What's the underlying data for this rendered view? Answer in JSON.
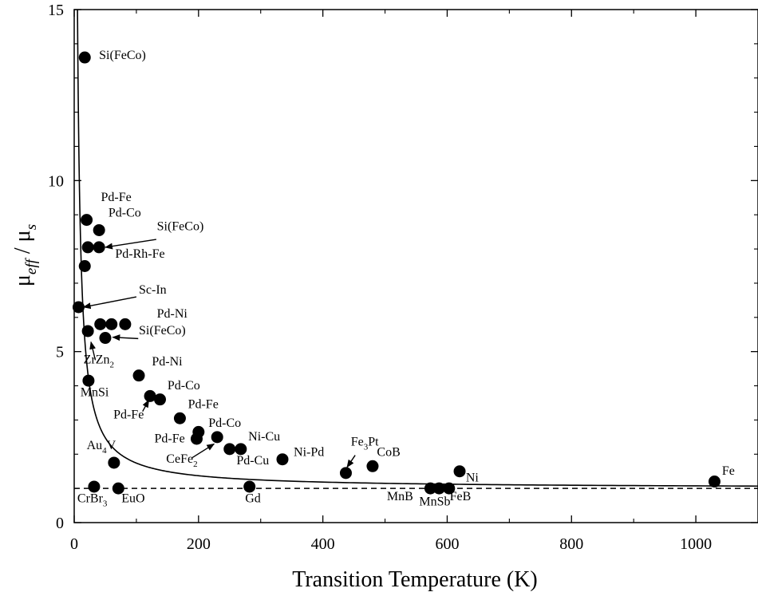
{
  "chart_data": {
    "type": "scatter",
    "xlabel": "Transition Temperature (K)",
    "ylabel": "μeff / μs",
    "ylabel_parts": {
      "mu1": "μ",
      "sub1": "eff",
      "slash": " / ",
      "mu2": "μ",
      "sub2": "s"
    },
    "xlim": [
      0,
      1100
    ],
    "ylim": [
      0,
      15
    ],
    "xticks": [
      0,
      200,
      400,
      600,
      800,
      1000
    ],
    "xtick_labels": [
      "0",
      "200",
      "400",
      "600",
      "800",
      "1000"
    ],
    "yticks": [
      0,
      5,
      10,
      15
    ],
    "ytick_labels": [
      "0",
      "5",
      "10",
      "15"
    ],
    "grid": false,
    "reference_line": {
      "y": 1,
      "style": "dashed"
    },
    "fit_curve": {
      "form": "y = 1 + a / x",
      "a": 74,
      "color": "#000000"
    },
    "points": [
      {
        "x": 17,
        "y": 13.6
      },
      {
        "x": 20,
        "y": 8.85
      },
      {
        "x": 40,
        "y": 8.55
      },
      {
        "x": 22,
        "y": 8.05
      },
      {
        "x": 40,
        "y": 8.05
      },
      {
        "x": 17,
        "y": 7.5
      },
      {
        "x": 7,
        "y": 6.3
      },
      {
        "x": 22,
        "y": 5.6
      },
      {
        "x": 42,
        "y": 5.8
      },
      {
        "x": 60,
        "y": 5.8
      },
      {
        "x": 82,
        "y": 5.8
      },
      {
        "x": 50,
        "y": 5.4
      },
      {
        "x": 104,
        "y": 4.3
      },
      {
        "x": 23,
        "y": 4.15
      },
      {
        "x": 122,
        "y": 3.7
      },
      {
        "x": 138,
        "y": 3.6
      },
      {
        "x": 170,
        "y": 3.05
      },
      {
        "x": 200,
        "y": 2.65
      },
      {
        "x": 197,
        "y": 2.45
      },
      {
        "x": 230,
        "y": 2.5
      },
      {
        "x": 250,
        "y": 2.15
      },
      {
        "x": 268,
        "y": 2.15
      },
      {
        "x": 335,
        "y": 1.85
      },
      {
        "x": 437,
        "y": 1.45
      },
      {
        "x": 480,
        "y": 1.65
      },
      {
        "x": 620,
        "y": 1.5
      },
      {
        "x": 1030,
        "y": 1.2
      },
      {
        "x": 64,
        "y": 1.75
      },
      {
        "x": 32,
        "y": 1.05
      },
      {
        "x": 71,
        "y": 1.0
      },
      {
        "x": 282,
        "y": 1.05
      },
      {
        "x": 573,
        "y": 1.0
      },
      {
        "x": 587,
        "y": 1.0
      },
      {
        "x": 603,
        "y": 1.0
      }
    ],
    "annotations": [
      {
        "text": "Si(FeCo)",
        "x": 40,
        "y": 13.55
      },
      {
        "text": "Pd-Fe",
        "x": 43,
        "y": 9.4
      },
      {
        "text": "Pd-Co",
        "x": 55,
        "y": 8.95
      },
      {
        "text": "Si(FeCo)",
        "x": 133,
        "y": 8.55
      },
      {
        "text": "Pd-Rh-Fe",
        "x": 66,
        "y": 7.75
      },
      {
        "text": "Sc-In",
        "x": 104,
        "y": 6.7
      },
      {
        "text": "Pd-Ni",
        "x": 133,
        "y": 6.0
      },
      {
        "text": "Si(FeCo)",
        "x": 104,
        "y": 5.5
      },
      {
        "text": "ZrZn",
        "sub": "2",
        "x": 15,
        "y": 4.65
      },
      {
        "text": "Pd-Ni",
        "x": 125,
        "y": 4.6
      },
      {
        "text": "MnSi",
        "x": 10,
        "y": 3.7
      },
      {
        "text": "Pd-Co",
        "x": 150,
        "y": 3.9
      },
      {
        "text": "Pd-Fe",
        "x": 183,
        "y": 3.35
      },
      {
        "text": "Pd-Fe",
        "x": 63,
        "y": 3.05
      },
      {
        "text": "Pd-Co",
        "x": 216,
        "y": 2.8
      },
      {
        "text": "Pd-Fe",
        "x": 129,
        "y": 2.35
      },
      {
        "text": "Ni-Cu",
        "x": 280,
        "y": 2.4
      },
      {
        "text": "Au",
        "sub": "4",
        "tail": "V",
        "x": 20,
        "y": 2.15
      },
      {
        "text": "Ni-Pd",
        "x": 353,
        "y": 1.95
      },
      {
        "text": "Fe",
        "sub": "3",
        "tail": "Pt",
        "x": 445,
        "y": 2.25
      },
      {
        "text": "CoB",
        "x": 487,
        "y": 1.95
      },
      {
        "text": "CeFe",
        "sub": "2",
        "x": 148,
        "y": 1.75
      },
      {
        "text": "Pd-Cu",
        "x": 261,
        "y": 1.7
      },
      {
        "text": "Ni",
        "x": 630,
        "y": 1.2
      },
      {
        "text": "Fe",
        "x": 1042,
        "y": 1.4
      },
      {
        "text": "CrBr",
        "sub": "3",
        "x": 5,
        "y": 0.6
      },
      {
        "text": "EuO",
        "x": 76,
        "y": 0.6
      },
      {
        "text": "Gd",
        "x": 275,
        "y": 0.6
      },
      {
        "text": "MnB",
        "x": 503,
        "y": 0.65
      },
      {
        "text": "MnSb",
        "x": 555,
        "y": 0.5
      },
      {
        "text": "FeB",
        "x": 604,
        "y": 0.65
      }
    ],
    "arrows": [
      {
        "from": [
          132,
          8.28
        ],
        "to": [
          50,
          8.05
        ]
      },
      {
        "from": [
          100,
          6.6
        ],
        "to": [
          15,
          6.3
        ]
      },
      {
        "from": [
          103,
          5.38
        ],
        "to": [
          62,
          5.42
        ]
      },
      {
        "from": [
          34,
          4.75
        ],
        "to": [
          27,
          5.28
        ]
      },
      {
        "from": [
          110,
          3.25
        ],
        "to": [
          120,
          3.58
        ]
      },
      {
        "from": [
          190,
          1.9
        ],
        "to": [
          225,
          2.3
        ]
      },
      {
        "from": [
          452,
          1.97
        ],
        "to": [
          439,
          1.62
        ]
      }
    ]
  }
}
